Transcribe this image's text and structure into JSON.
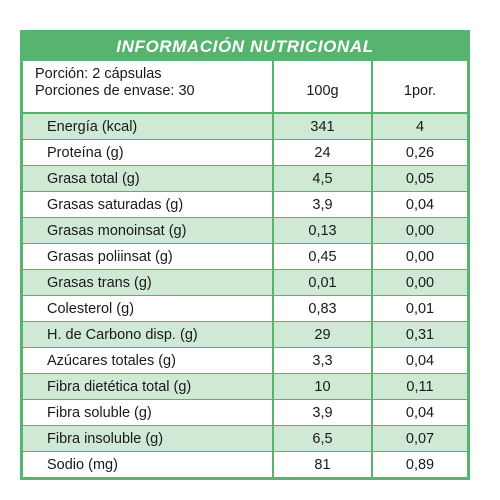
{
  "title": "INFORMACIÓN NUTRICIONAL",
  "serving": {
    "portion": "Porción: 2 cápsulas",
    "servings_per_container": "Porciones de envase: 30"
  },
  "columns": {
    "per_100g": "100g",
    "per_portion": "1por."
  },
  "colors": {
    "accent": "#56b46e",
    "shade": "#cfe9d5"
  },
  "nutrients": [
    {
      "name": "Energía (kcal)",
      "per_100g": "341",
      "per_portion": "4"
    },
    {
      "name": "Proteína (g)",
      "per_100g": "24",
      "per_portion": "0,26"
    },
    {
      "name": "Grasa total (g)",
      "per_100g": "4,5",
      "per_portion": "0,05"
    },
    {
      "name": "Grasas saturadas (g)",
      "per_100g": "3,9",
      "per_portion": "0,04"
    },
    {
      "name": "Grasas monoinsat (g)",
      "per_100g": "0,13",
      "per_portion": "0,00"
    },
    {
      "name": "Grasas poliinsat (g)",
      "per_100g": "0,45",
      "per_portion": "0,00"
    },
    {
      "name": "Grasas trans (g)",
      "per_100g": "0,01",
      "per_portion": "0,00"
    },
    {
      "name": "Colesterol (g)",
      "per_100g": "0,83",
      "per_portion": "0,01"
    },
    {
      "name": "H. de Carbono disp. (g)",
      "per_100g": "29",
      "per_portion": "0,31"
    },
    {
      "name": "Azúcares totales (g)",
      "per_100g": "3,3",
      "per_portion": "0,04"
    },
    {
      "name": "Fibra dietética total (g)",
      "per_100g": "10",
      "per_portion": "0,11"
    },
    {
      "name": "Fibra soluble (g)",
      "per_100g": "3,9",
      "per_portion": "0,04"
    },
    {
      "name": "Fibra insoluble (g)",
      "per_100g": "6,5",
      "per_portion": "0,07"
    },
    {
      "name": "Sodio (mg)",
      "per_100g": "81",
      "per_portion": "0,89"
    }
  ]
}
